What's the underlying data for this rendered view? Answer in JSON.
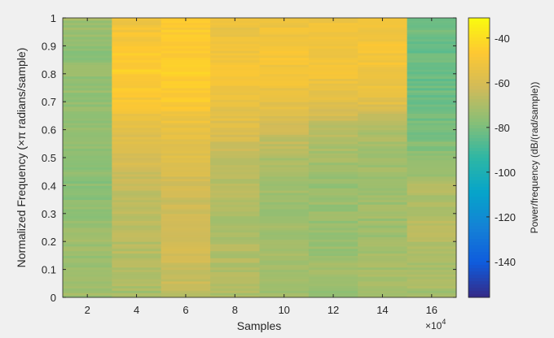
{
  "chart_data": {
    "type": "heatmap",
    "title": "",
    "xlabel": "Samples",
    "x_exponent_label": "×10",
    "x_exponent_power": "4",
    "ylabel": "Normalized Frequency  (×π radians/sample)",
    "colorbar_label": "Power/frequency (dB/(rad/sample))",
    "colormap": "parula",
    "xlim": [
      1,
      17
    ],
    "ylim": [
      0,
      1
    ],
    "clim": [
      -156,
      -31
    ],
    "x_ticks": [
      2,
      4,
      6,
      8,
      10,
      12,
      14,
      16
    ],
    "x_tick_labels": [
      "2",
      "4",
      "6",
      "8",
      "10",
      "12",
      "14",
      "16"
    ],
    "y_ticks": [
      0,
      0.1,
      0.2,
      0.3,
      0.4,
      0.5,
      0.6,
      0.7,
      0.8,
      0.9,
      1
    ],
    "y_tick_labels": [
      "0",
      "0.1",
      "0.2",
      "0.3",
      "0.4",
      "0.5",
      "0.6",
      "0.7",
      "0.8",
      "0.9",
      "1"
    ],
    "colorbar_ticks": [
      -40,
      -60,
      -80,
      -100,
      -120,
      -140
    ],
    "colorbar_tick_labels": [
      "-40",
      "-60",
      "-80",
      "-100",
      "-120",
      "-140"
    ],
    "frequency_points": [
      0,
      0.1,
      0.2,
      0.3,
      0.4,
      0.5,
      0.6,
      0.7,
      0.8,
      0.9,
      1
    ],
    "time_segments": [
      {
        "center": 2,
        "power_db": [
          -72,
          -74,
          -73,
          -76,
          -77,
          -76,
          -76,
          -75,
          -75,
          -76,
          -72
        ]
      },
      {
        "center": 4,
        "power_db": [
          -72,
          -68,
          -68,
          -67,
          -66,
          -60,
          -56,
          -49,
          -45,
          -48,
          -52
        ]
      },
      {
        "center": 6,
        "power_db": [
          -66,
          -63,
          -62,
          -64,
          -62,
          -58,
          -55,
          -47,
          -45,
          -46,
          -47
        ]
      },
      {
        "center": 8,
        "power_db": [
          -70,
          -69,
          -69,
          -70,
          -68,
          -65,
          -58,
          -54,
          -50,
          -52,
          -53
        ]
      },
      {
        "center": 10,
        "power_db": [
          -73,
          -72,
          -72,
          -73,
          -72,
          -70,
          -63,
          -55,
          -50,
          -50,
          -52
        ]
      },
      {
        "center": 12,
        "power_db": [
          -74,
          -73,
          -74,
          -74,
          -74,
          -72,
          -68,
          -56,
          -51,
          -50,
          -52
        ]
      },
      {
        "center": 14,
        "power_db": [
          -72,
          -72,
          -72,
          -73,
          -72,
          -72,
          -70,
          -56,
          -51,
          -50,
          -52
        ]
      },
      {
        "center": 16,
        "power_db": [
          -72,
          -70,
          -68,
          -68,
          -70,
          -76,
          -80,
          -82,
          -83,
          -83,
          -80
        ]
      }
    ]
  }
}
